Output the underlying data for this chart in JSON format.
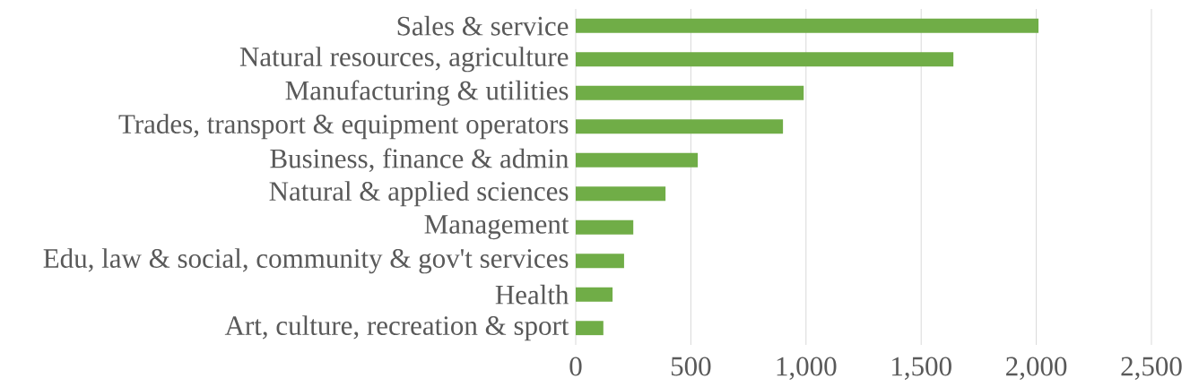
{
  "chart_data": {
    "type": "bar",
    "orientation": "horizontal",
    "categories": [
      "Sales & service",
      "Natural resources, agriculture",
      "Manufacturing & utilities",
      "Trades, transport & equipment operators",
      "Business, finance & admin",
      "Natural & applied sciences",
      "Management",
      "Edu, law & social, community & gov't services",
      "Health",
      "Art, culture, recreation & sport"
    ],
    "values": [
      2010,
      1640,
      990,
      900,
      530,
      390,
      250,
      210,
      160,
      120
    ],
    "color": "#70ad47",
    "xlim": [
      0,
      2500
    ],
    "xticks": [
      {
        "value": 0,
        "label": "0"
      },
      {
        "value": 500,
        "label": "500"
      },
      {
        "value": 1000,
        "label": "1,000"
      },
      {
        "value": 1500,
        "label": "1,500"
      },
      {
        "value": 2000,
        "label": "2,000"
      },
      {
        "value": 2500,
        "label": "2,500"
      }
    ],
    "grid": "x"
  }
}
